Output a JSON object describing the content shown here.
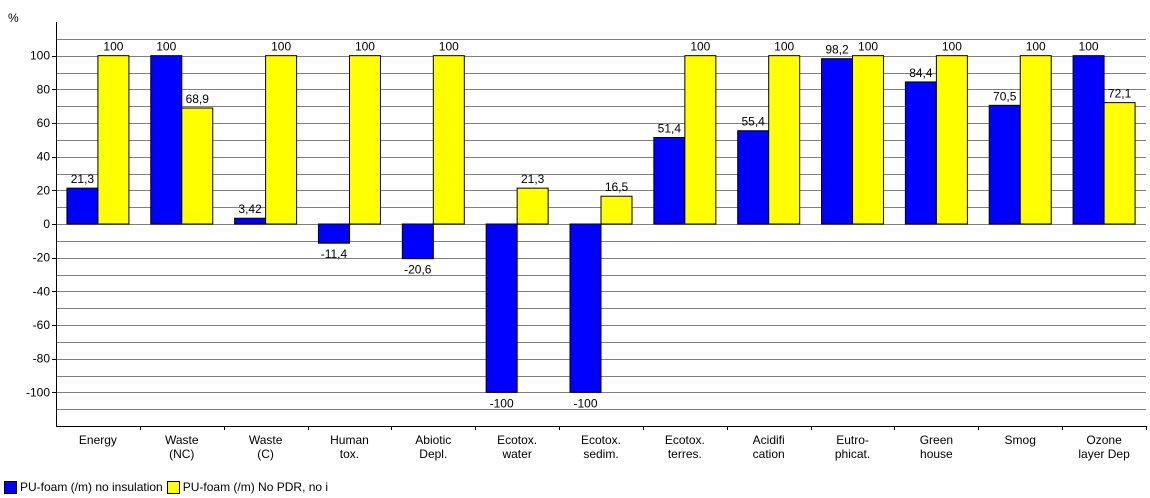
{
  "chart_data": {
    "type": "bar",
    "title": "",
    "xlabel": "",
    "ylabel": "%",
    "ylim": [
      -120,
      120
    ],
    "yticks": [
      -100,
      -80,
      -60,
      -40,
      -20,
      0,
      20,
      40,
      60,
      80,
      100
    ],
    "grid": true,
    "legend_position": "bottom-left",
    "categories": [
      [
        "Energy"
      ],
      [
        "Waste",
        "(NC)"
      ],
      [
        "Waste",
        "(C)"
      ],
      [
        "Human",
        "tox."
      ],
      [
        "Abiotic",
        "Depl."
      ],
      [
        "Ecotox.",
        "water"
      ],
      [
        "Ecotox.",
        "sedim."
      ],
      [
        "Ecotox.",
        "terres."
      ],
      [
        "Acidifi",
        "cation"
      ],
      [
        "Eutro-",
        "phicat."
      ],
      [
        "Green",
        "house"
      ],
      [
        "Smog"
      ],
      [
        "Ozone",
        "layer Dep"
      ]
    ],
    "series": [
      {
        "name": "PU-foam (/m) no insulation",
        "color": "#0000ff",
        "values": [
          21.3,
          100,
          3.42,
          -11.4,
          -20.6,
          -100,
          -100,
          51.4,
          55.4,
          98.2,
          84.4,
          70.5,
          100
        ],
        "labels": [
          "21,3",
          "100",
          "3,42",
          "-11,4",
          "-20,6",
          "-100",
          "-100",
          "51,4",
          "55,4",
          "98,2",
          "84,4",
          "70,5",
          "100"
        ]
      },
      {
        "name": "PU-foam (/m) No PDR, no i",
        "color": "#ffff00",
        "values": [
          100,
          68.9,
          100,
          100,
          100,
          21.3,
          16.5,
          100,
          100,
          100,
          100,
          100,
          72.1
        ],
        "labels": [
          "100",
          "68,9",
          "100",
          "100",
          "100",
          "21,3",
          "16,5",
          "100",
          "100",
          "100",
          "100",
          "100",
          "72,1"
        ]
      }
    ]
  }
}
